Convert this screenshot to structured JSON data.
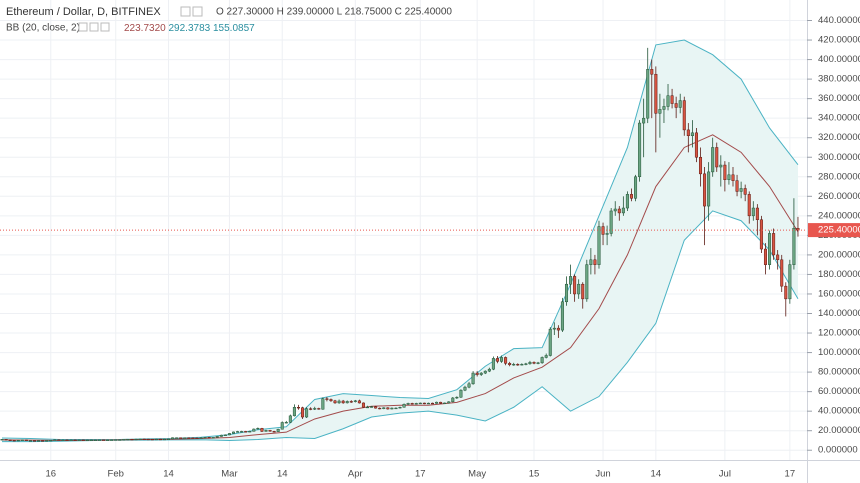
{
  "chart_data": {
    "type": "candlestick",
    "title": "Ethereum / Dollar, D, BITFINEX",
    "legend": "O 227.30000 H 239.00000 L 218.75000 C 225.40000",
    "indicator": {
      "label": "BB (20, close, 2)",
      "values": [
        "223.7320",
        "292.3783",
        "155.0857"
      ]
    },
    "categories": [
      null,
      null,
      null,
      null,
      null,
      null,
      null,
      null,
      null,
      null,
      null,
      null,
      "16",
      null,
      null,
      null,
      null,
      null,
      null,
      null,
      null,
      null,
      null,
      null,
      null,
      null,
      null,
      null,
      "Feb",
      null,
      null,
      null,
      null,
      null,
      null,
      null,
      null,
      null,
      null,
      null,
      null,
      "14",
      null,
      null,
      null,
      null,
      null,
      null,
      null,
      null,
      null,
      null,
      null,
      null,
      null,
      null,
      "Mar",
      null,
      null,
      null,
      null,
      null,
      null,
      null,
      null,
      null,
      null,
      null,
      null,
      "14",
      null,
      null,
      null,
      null,
      null,
      null,
      null,
      null,
      null,
      null,
      null,
      null,
      null,
      null,
      null,
      null,
      null,
      "Apr",
      null,
      null,
      null,
      null,
      null,
      null,
      null,
      null,
      null,
      null,
      null,
      null,
      null,
      null,
      null,
      "17",
      null,
      null,
      null,
      null,
      null,
      null,
      null,
      null,
      null,
      null,
      null,
      null,
      null,
      "May",
      null,
      null,
      null,
      null,
      null,
      null,
      null,
      null,
      null,
      null,
      null,
      null,
      null,
      "15",
      null,
      null,
      null,
      null,
      null,
      null,
      null,
      null,
      null,
      null,
      null,
      null,
      null,
      null,
      null,
      null,
      "Jun",
      null,
      null,
      null,
      null,
      null,
      null,
      null,
      null,
      null,
      null,
      null,
      null,
      "14",
      null,
      null,
      null,
      null,
      null,
      null,
      null,
      null,
      null,
      null,
      null,
      null,
      null,
      null,
      null,
      null,
      "Jul",
      null,
      null,
      null,
      null,
      null,
      null,
      null,
      null,
      null,
      null,
      null,
      null,
      null,
      null,
      null,
      "17",
      null,
      null
    ],
    "open": [
      11.0,
      11.2,
      10.5,
      10.2,
      9.9,
      10.3,
      10.6,
      9.8,
      9.9,
      9.7,
      9.9,
      9.8,
      10.0,
      10.2,
      10.8,
      10.4,
      10.6,
      10.5,
      10.6,
      10.5,
      10.6,
      10.5,
      10.5,
      10.6,
      10.6,
      10.7,
      10.5,
      10.6,
      10.7,
      10.8,
      10.8,
      11.1,
      11.3,
      11.2,
      11.4,
      11.5,
      11.4,
      11.3,
      11.2,
      11.4,
      11.3,
      11.4,
      11.6,
      12.8,
      12.8,
      12.6,
      12.8,
      12.7,
      12.6,
      12.5,
      12.9,
      13.3,
      13.1,
      13.2,
      14.1,
      15.4,
      15.7,
      17.2,
      18.7,
      19.2,
      19.3,
      19.0,
      19.4,
      21.7,
      22.5,
      19.3,
      20.4,
      19.4,
      19.0,
      21.5,
      28.4,
      28.6,
      35.2,
      44.0,
      43.5,
      34.0,
      42.5,
      42.3,
      42.8,
      42.0,
      52.7,
      52.0,
      50.6,
      48.5,
      50.4,
      48.5,
      50.0,
      49.8,
      50.6,
      48.4,
      44.1,
      44.2,
      44.6,
      43.1,
      42.5,
      43.5,
      42.2,
      43.2,
      43.2,
      44.0,
      47.1,
      48.0,
      47.7,
      48.0,
      48.3,
      47.8,
      48.2,
      48.0,
      49.2,
      48.1,
      48.4,
      49.6,
      53.5,
      54.3,
      61.5,
      64.6,
      68.0,
      79.0,
      77.5,
      79.0,
      81.0,
      83.0,
      94.0,
      91.0,
      95.0,
      89.0,
      87.5,
      88.0,
      87.6,
      88.0,
      88.5,
      90.0,
      89.0,
      89.5,
      95.0,
      97.0,
      124,
      125,
      123,
      152,
      170,
      178,
      160,
      170,
      155,
      190,
      195,
      190,
      229,
      221,
      222,
      245,
      247,
      243,
      248,
      262,
      258,
      280,
      335,
      340,
      390,
      385,
      345,
      349,
      352,
      363,
      355,
      351,
      358,
      328,
      322,
      325,
      300,
      283,
      250,
      285,
      310,
      290,
      292,
      277,
      282,
      276,
      265,
      268,
      262,
      240,
      248,
      236,
      206,
      190,
      222,
      200,
      195,
      168,
      155,
      190,
      227.3
    ],
    "high": [
      11.5,
      11.5,
      10.8,
      10.5,
      10.5,
      10.9,
      10.9,
      10.2,
      10.1,
      10.1,
      10.1,
      10.2,
      10.4,
      11.1,
      11.0,
      10.8,
      10.8,
      10.8,
      10.8,
      10.8,
      10.8,
      10.7,
      10.8,
      10.8,
      10.9,
      10.9,
      10.8,
      10.9,
      11.0,
      11.0,
      11.3,
      11.5,
      11.5,
      11.6,
      11.7,
      11.7,
      11.6,
      11.5,
      11.6,
      11.6,
      11.6,
      11.9,
      13.2,
      13.1,
      13.0,
      13.0,
      13.0,
      12.9,
      12.8,
      13.2,
      13.6,
      13.5,
      13.4,
      14.4,
      15.9,
      16.2,
      17.6,
      19.2,
      19.8,
      19.9,
      19.8,
      20.0,
      22.3,
      23.3,
      22.9,
      21.0,
      20.8,
      19.9,
      22.0,
      29.5,
      30.0,
      36.5,
      47.0,
      46.5,
      44.5,
      44.0,
      44.0,
      44.5,
      43.5,
      54.0,
      54.5,
      53.0,
      51.5,
      52.0,
      51.5,
      51.0,
      51.2,
      51.5,
      51.8,
      49.0,
      45.5,
      45.3,
      45.4,
      43.8,
      44.0,
      44.0,
      43.8,
      43.9,
      44.6,
      47.8,
      48.7,
      48.6,
      48.6,
      48.9,
      48.7,
      48.8,
      48.8,
      49.8,
      49.6,
      48.9,
      50.2,
      54.5,
      55.2,
      62.5,
      66.0,
      70.0,
      81.0,
      81.0,
      80.0,
      81.8,
      84.5,
      96.0,
      96.5,
      97.0,
      96.0,
      90.5,
      89.5,
      89.0,
      89.0,
      89.5,
      91.5,
      91.0,
      90.5,
      96.0,
      99.0,
      126,
      131,
      128,
      156,
      178,
      190,
      180,
      175,
      172,
      195,
      207,
      200,
      235,
      233,
      230,
      248,
      255,
      250,
      260,
      265,
      268,
      282,
      338,
      360,
      412,
      400,
      393,
      365,
      360,
      375,
      370,
      362,
      365,
      362,
      335,
      338,
      330,
      310,
      290,
      295,
      320,
      315,
      302,
      296,
      295,
      290,
      282,
      275,
      272,
      265,
      255,
      252,
      240,
      212,
      225,
      227,
      205,
      200,
      172,
      195,
      258,
      239
    ],
    "low": [
      10.7,
      10.2,
      9.9,
      9.6,
      9.7,
      10.0,
      9.5,
      9.5,
      9.4,
      9.5,
      9.6,
      9.6,
      9.8,
      10.0,
      10.2,
      10.2,
      10.3,
      10.3,
      10.3,
      10.3,
      10.3,
      10.3,
      10.3,
      10.4,
      10.4,
      10.3,
      10.3,
      10.4,
      10.5,
      10.6,
      10.6,
      10.9,
      11.0,
      11.0,
      11.2,
      11.2,
      11.1,
      11.0,
      11.0,
      11.1,
      11.1,
      11.2,
      11.4,
      12.5,
      12.4,
      12.4,
      12.5,
      12.4,
      12.3,
      12.3,
      12.7,
      12.9,
      12.8,
      12.9,
      13.8,
      15.0,
      15.4,
      16.9,
      18.3,
      18.8,
      18.7,
      18.7,
      19.1,
      21.2,
      18.7,
      19.0,
      19.0,
      18.8,
      18.7,
      21.2,
      27.5,
      28.0,
      34.5,
      41.5,
      32.0,
      33.0,
      41.0,
      41.2,
      41.5,
      41.5,
      50.0,
      49.5,
      47.5,
      47.5,
      47.5,
      47.8,
      48.5,
      48.9,
      47.8,
      43.5,
      43.2,
      43.6,
      42.6,
      41.9,
      42.0,
      41.6,
      41.8,
      42.5,
      42.7,
      43.6,
      46.5,
      47.0,
      47.1,
      47.4,
      47.2,
      47.3,
      47.5,
      47.6,
      47.6,
      47.6,
      47.9,
      49.0,
      52.5,
      53.6,
      60.5,
      63.5,
      67.0,
      75.5,
      76.0,
      78.0,
      80.0,
      82.0,
      89.0,
      89.5,
      87.0,
      86.0,
      86.5,
      86.5,
      86.8,
      87.0,
      87.5,
      88.0,
      88.0,
      88.5,
      94.0,
      96.0,
      118,
      115,
      121,
      148,
      160,
      152,
      155,
      145,
      152,
      180,
      180,
      186,
      210,
      210,
      219,
      240,
      235,
      240,
      245,
      255,
      255,
      275,
      300,
      335,
      340,
      305,
      320,
      335,
      348,
      350,
      340,
      345,
      322,
      305,
      310,
      295,
      270,
      210,
      235,
      280,
      285,
      270,
      265,
      272,
      270,
      260,
      258,
      255,
      232,
      235,
      220,
      202,
      180,
      185,
      195,
      185,
      162,
      137,
      150,
      185,
      218.75
    ],
    "close": [
      11.2,
      10.5,
      10.2,
      9.9,
      10.3,
      10.6,
      9.8,
      9.9,
      9.7,
      9.9,
      9.8,
      10.0,
      10.2,
      10.8,
      10.4,
      10.6,
      10.5,
      10.6,
      10.5,
      10.6,
      10.5,
      10.5,
      10.6,
      10.6,
      10.7,
      10.5,
      10.6,
      10.7,
      10.8,
      10.8,
      11.1,
      11.3,
      11.2,
      11.4,
      11.5,
      11.4,
      11.3,
      11.2,
      11.4,
      11.3,
      11.4,
      11.6,
      12.8,
      12.8,
      12.6,
      12.8,
      12.7,
      12.6,
      12.5,
      12.9,
      13.3,
      13.1,
      13.2,
      14.1,
      15.4,
      15.7,
      17.2,
      18.7,
      19.2,
      19.3,
      19.0,
      19.4,
      21.7,
      22.5,
      19.3,
      20.4,
      19.4,
      19.0,
      21.5,
      28.4,
      28.6,
      35.2,
      44.0,
      43.5,
      34.0,
      42.5,
      42.3,
      42.8,
      42.0,
      52.7,
      52.0,
      50.6,
      48.5,
      50.4,
      48.5,
      50.0,
      49.8,
      50.6,
      48.4,
      44.1,
      44.2,
      44.6,
      43.1,
      42.5,
      43.5,
      42.2,
      43.2,
      43.2,
      44.0,
      47.1,
      48.0,
      47.7,
      48.0,
      48.3,
      47.8,
      48.2,
      48.0,
      49.2,
      48.1,
      48.4,
      49.6,
      53.5,
      54.3,
      61.5,
      64.6,
      68.0,
      79.0,
      77.5,
      79.0,
      81.0,
      83.0,
      94.0,
      91.0,
      95.0,
      89.0,
      87.5,
      88.0,
      87.6,
      88.0,
      88.5,
      90.0,
      89.0,
      89.5,
      95.0,
      97.0,
      124,
      125,
      123,
      152,
      170,
      178,
      160,
      170,
      155,
      190,
      195,
      190,
      229,
      221,
      222,
      245,
      247,
      243,
      248,
      262,
      258,
      280,
      335,
      340,
      390,
      385,
      345,
      349,
      352,
      363,
      355,
      351,
      358,
      328,
      322,
      325,
      300,
      283,
      250,
      285,
      310,
      290,
      292,
      277,
      282,
      276,
      265,
      268,
      262,
      240,
      248,
      236,
      206,
      190,
      222,
      200,
      195,
      168,
      155,
      190,
      227.3,
      225.4
    ],
    "up_color": "#6ba583",
    "down_color": "#d75442",
    "up_border": "#225437",
    "down_border": "#5b1a13",
    "bands": {
      "x": [
        0,
        7,
        14,
        21,
        28,
        35,
        42,
        49,
        56,
        63,
        70,
        77,
        84,
        91,
        98,
        105,
        112,
        119,
        126,
        133,
        140,
        147,
        154,
        161,
        168,
        175,
        182,
        189,
        196
      ],
      "upper": [
        12.5,
        12.0,
        11.0,
        11.0,
        10.9,
        11.6,
        12.0,
        13.3,
        16.0,
        21.0,
        24,
        52,
        58,
        56,
        54,
        53,
        62,
        86,
        104,
        105,
        170,
        240,
        310,
        415,
        420,
        405,
        380,
        330,
        292.3783
      ],
      "middle": [
        10.6,
        10.4,
        10.1,
        10.4,
        10.6,
        11.0,
        11.3,
        12.0,
        13.0,
        16.0,
        18.5,
        32,
        40,
        45,
        46,
        46,
        49,
        58,
        74,
        85,
        105,
        145,
        200,
        270,
        310,
        323,
        305,
        270,
        223.732
      ],
      "lower": [
        8.8,
        8.8,
        9.2,
        9.8,
        10.3,
        10.4,
        10.6,
        10.7,
        10.0,
        11.0,
        13,
        12,
        22,
        34,
        38,
        40,
        36,
        30,
        44,
        65,
        40,
        55,
        90,
        130,
        215,
        245,
        235,
        205,
        155.0857
      ],
      "band_color": "#4ab3c4",
      "middle_color": "#a34b4b",
      "fill_color": "#e8f5f4"
    },
    "last_price": {
      "value": 225.4,
      "label": "225.40000",
      "color": "#e8564e"
    },
    "ylim": [
      -10,
      461
    ],
    "yticks": [
      {
        "value": 0,
        "label": "0.000000"
      },
      {
        "value": 20,
        "label": "20.000000"
      },
      {
        "value": 40,
        "label": "40.000000"
      },
      {
        "value": 60,
        "label": "60.000000"
      },
      {
        "value": 80,
        "label": "80.000000"
      },
      {
        "value": 100,
        "label": "100.000000"
      },
      {
        "value": 120,
        "label": "120.000000"
      },
      {
        "value": 140,
        "label": "140.000000"
      },
      {
        "value": 160,
        "label": "160.000000"
      },
      {
        "value": 180,
        "label": "180.000000"
      },
      {
        "value": 200,
        "label": "200.000000"
      },
      {
        "value": 220,
        "label": "220.000000"
      },
      {
        "value": 240,
        "label": "240.000000"
      },
      {
        "value": 260,
        "label": "260.000000"
      },
      {
        "value": 280,
        "label": "280.000000"
      },
      {
        "value": 300,
        "label": "300.000000"
      },
      {
        "value": 320,
        "label": "320.000000"
      },
      {
        "value": 340,
        "label": "340.000000"
      },
      {
        "value": 360,
        "label": "360.000000"
      },
      {
        "value": 380,
        "label": "380.000000"
      },
      {
        "value": 400,
        "label": "400.000000"
      },
      {
        "value": 420,
        "label": "420.000000"
      },
      {
        "value": 440,
        "label": "440.000000"
      }
    ],
    "grid": true
  }
}
